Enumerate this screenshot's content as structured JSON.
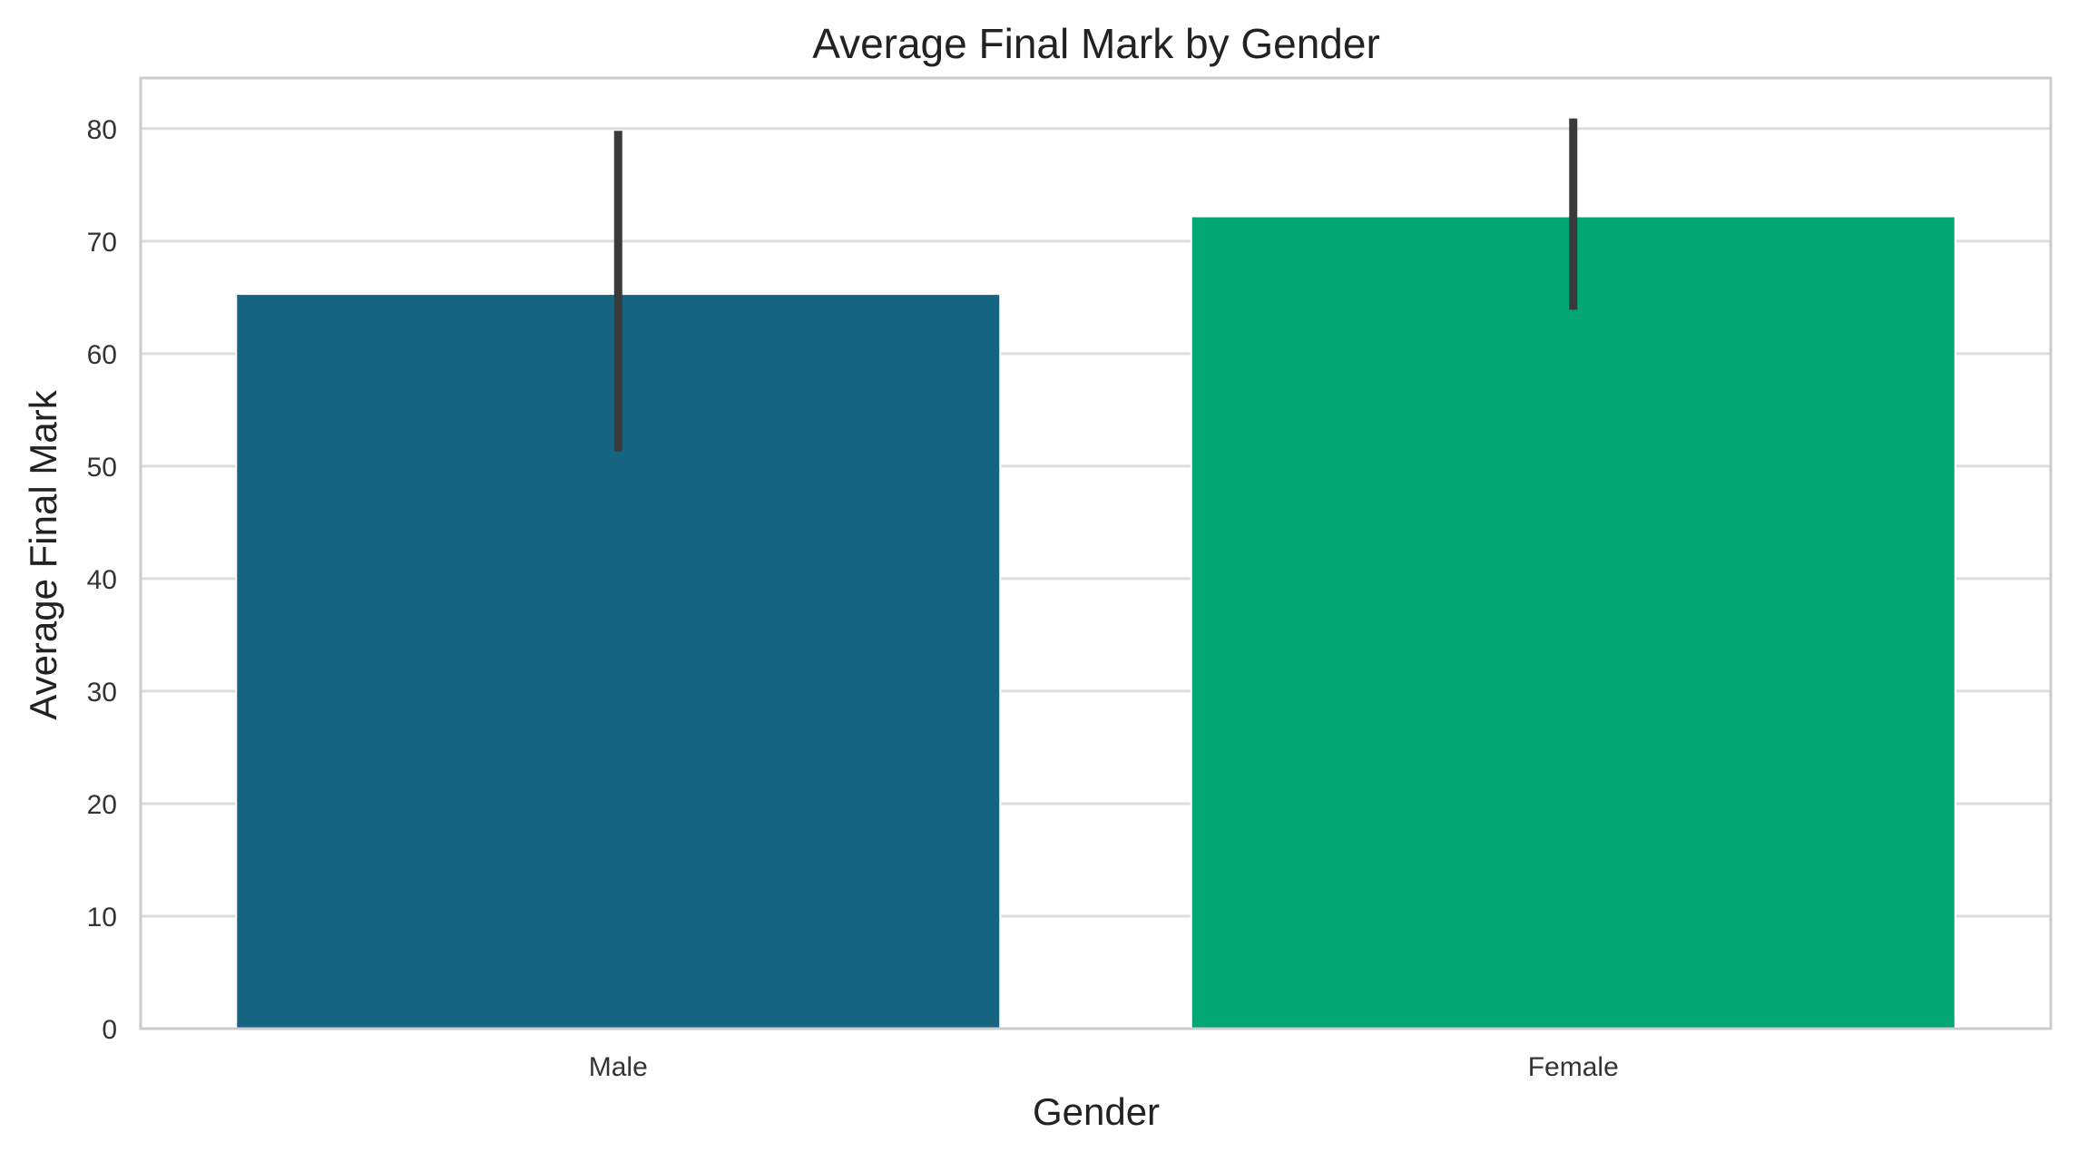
{
  "chart_data": {
    "type": "bar",
    "title": "Average Final Mark by Gender",
    "xlabel": "Gender",
    "ylabel": "Average Final Mark",
    "categories": [
      "Male",
      "Female"
    ],
    "values": [
      65.3,
      72.2
    ],
    "error_low": [
      51.3,
      63.9
    ],
    "error_high": [
      79.8,
      80.9
    ],
    "colors": [
      "#156482",
      "#01a673"
    ],
    "error_color": "#3a3a3a",
    "ylim": [
      0,
      84.5
    ],
    "yticks": [
      0,
      10,
      20,
      30,
      40,
      50,
      60,
      70,
      80
    ],
    "grid": true,
    "legend": "none"
  }
}
